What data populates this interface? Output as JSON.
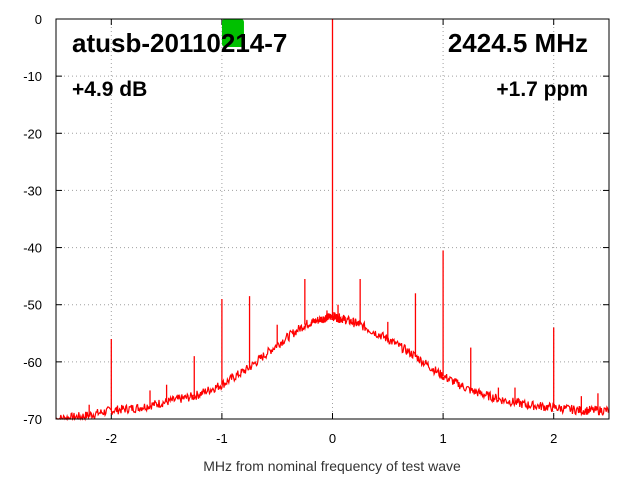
{
  "chart_data": {
    "type": "line",
    "title": "",
    "xlabel": "MHz from nominal frequency of test wave",
    "ylabel": "",
    "xlim": [
      -2.5,
      2.5
    ],
    "ylim": [
      -70,
      0
    ],
    "xticks": [
      -2,
      -1,
      0,
      1,
      2
    ],
    "yticks": [
      0,
      -10,
      -20,
      -30,
      -40,
      -50,
      -60,
      -70
    ],
    "grid": true,
    "line_color": "#ff0000",
    "marker_color": "#00c000",
    "annotations": {
      "device": "atusb-20110214-7",
      "frequency": "2424.5 MHz",
      "level": "+4.9 dB",
      "offset": "+1.7 ppm"
    },
    "series": [
      {
        "x": [
          -2.5,
          -2.25,
          -2.0,
          -1.75,
          -1.5,
          -1.25,
          -1.0,
          -0.75,
          -0.5,
          -0.25,
          -0.1,
          0.0,
          0.1,
          0.25,
          0.5,
          0.75,
          1.0,
          1.25,
          1.5,
          1.75,
          2.0,
          2.25,
          2.5
        ],
        "values": [
          -70,
          -69.5,
          -68.5,
          -68,
          -67,
          -66,
          -64,
          -61,
          -57,
          -53.5,
          -52.5,
          -52,
          -52.5,
          -53.5,
          -56,
          -59,
          -62.5,
          -65,
          -66.5,
          -67.5,
          -68,
          -68.5,
          -68.5
        ]
      }
    ],
    "spikes": [
      {
        "x": -2.2,
        "y": -67.5
      },
      {
        "x": -2.0,
        "y": -56
      },
      {
        "x": -1.65,
        "y": -65
      },
      {
        "x": -1.5,
        "y": -64
      },
      {
        "x": -1.25,
        "y": -59
      },
      {
        "x": -1.0,
        "y": -49
      },
      {
        "x": -0.75,
        "y": -48.5
      },
      {
        "x": -0.5,
        "y": -53.5
      },
      {
        "x": -0.25,
        "y": -45.5
      },
      {
        "x": -0.05,
        "y": -51
      },
      {
        "x": 0.0,
        "y": 0
      },
      {
        "x": 0.05,
        "y": -50
      },
      {
        "x": 0.25,
        "y": -45.5
      },
      {
        "x": 0.5,
        "y": -53
      },
      {
        "x": 0.75,
        "y": -48
      },
      {
        "x": 1.0,
        "y": -40.5
      },
      {
        "x": 1.25,
        "y": -57.5
      },
      {
        "x": 1.5,
        "y": -64.5
      },
      {
        "x": 1.65,
        "y": -64.5
      },
      {
        "x": 2.0,
        "y": -54
      },
      {
        "x": 2.25,
        "y": -66
      },
      {
        "x": 2.4,
        "y": -65.5
      }
    ],
    "marker": {
      "x": -0.9,
      "y": 0
    }
  }
}
